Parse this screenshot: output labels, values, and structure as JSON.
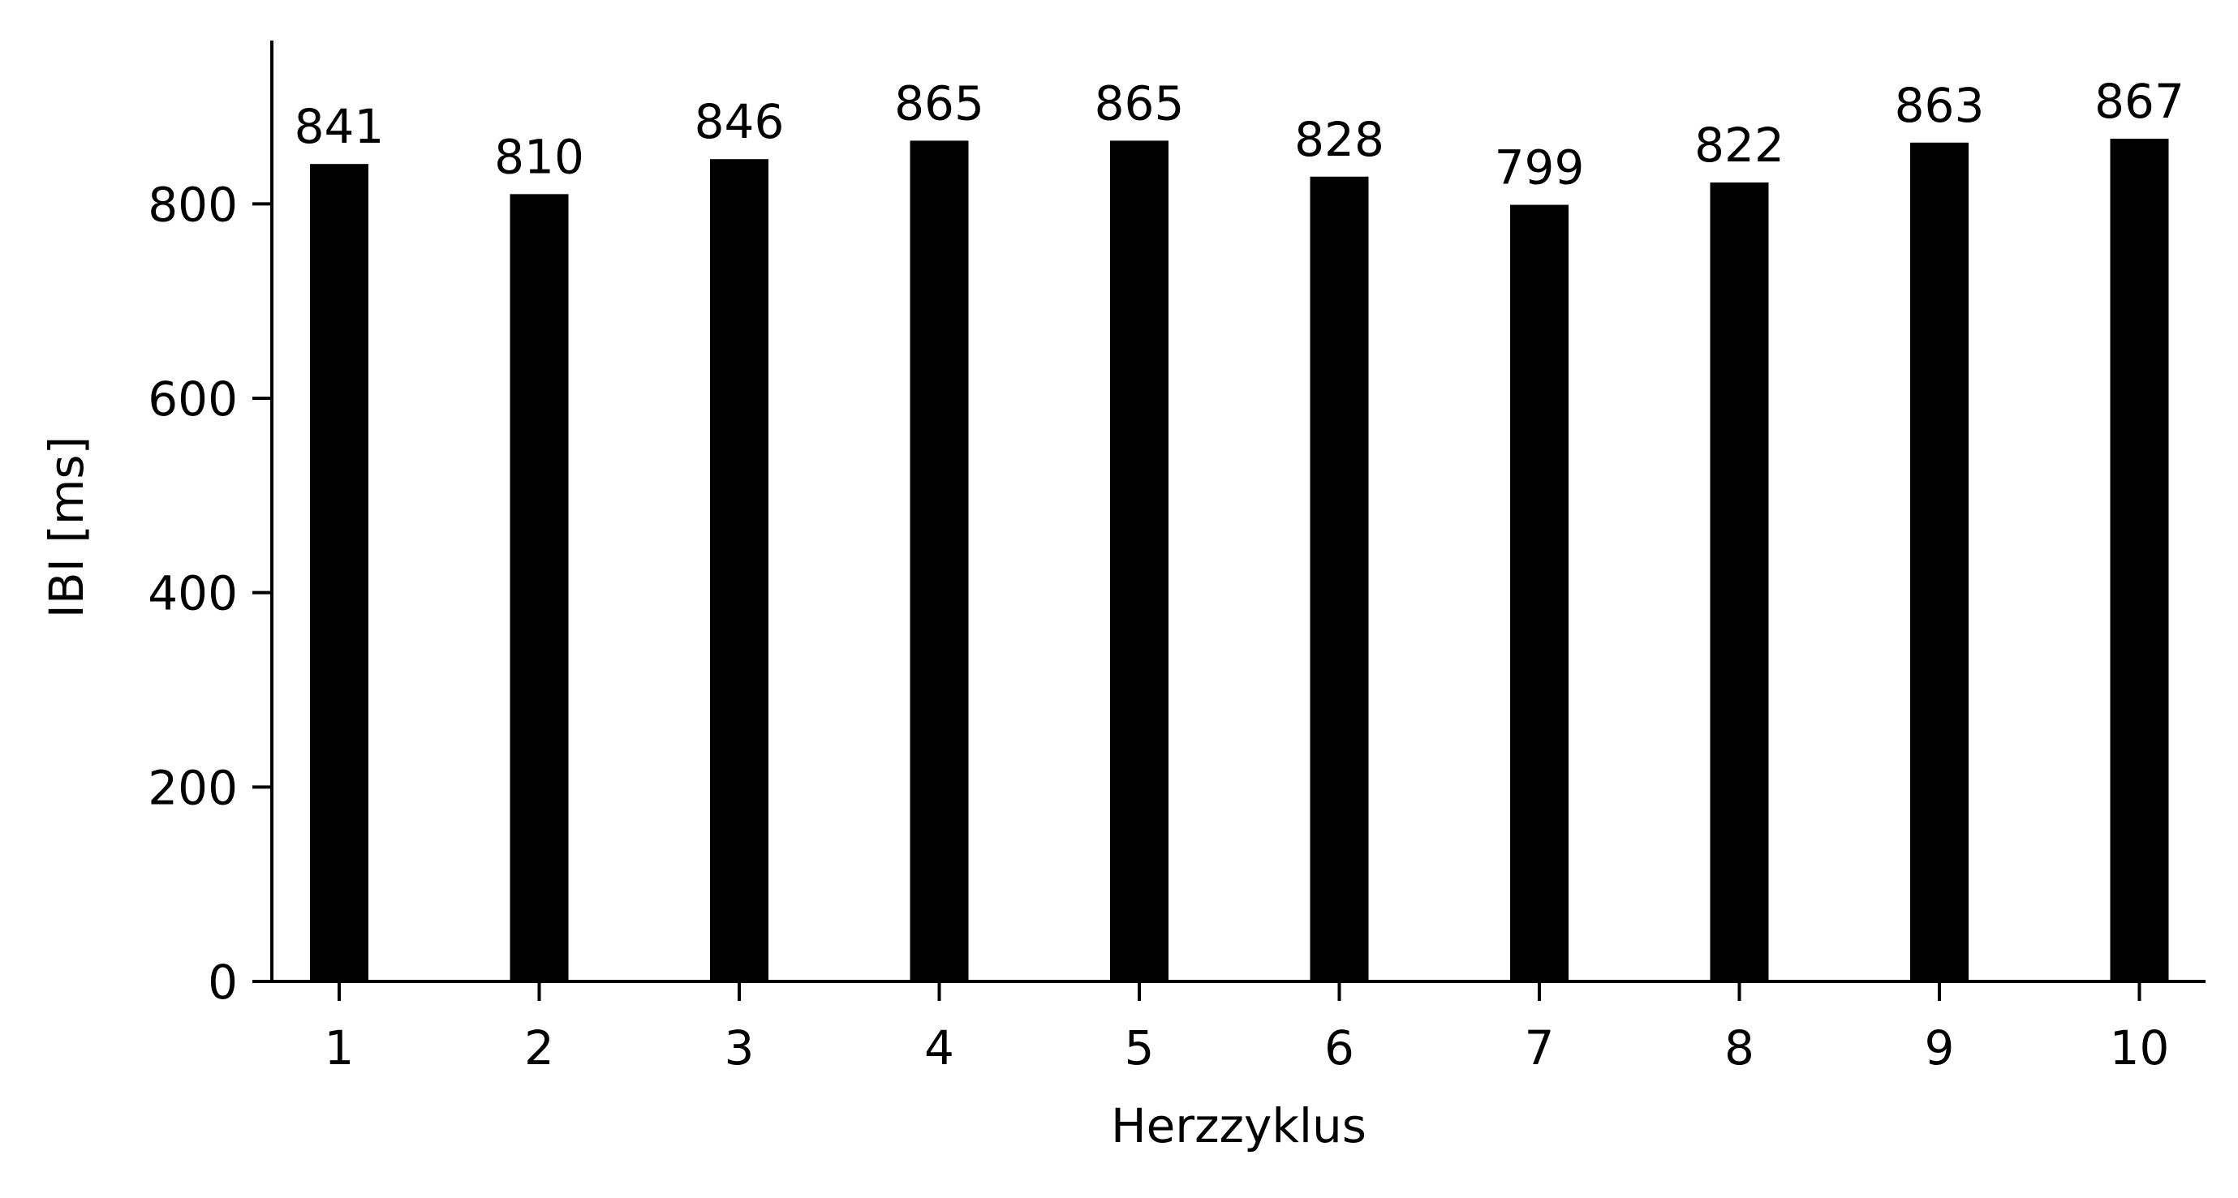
{
  "chart_data": {
    "type": "bar",
    "title": "",
    "xlabel": "Herzzyklus",
    "ylabel": "IBI [ms]",
    "categories": [
      "1",
      "2",
      "3",
      "4",
      "5",
      "6",
      "7",
      "8",
      "9",
      "10"
    ],
    "values": [
      841,
      810,
      846,
      865,
      865,
      828,
      799,
      822,
      863,
      867
    ],
    "data_labels": [
      "841",
      "810",
      "846",
      "865",
      "865",
      "828",
      "799",
      "822",
      "863",
      "867"
    ],
    "yticks": [
      0,
      200,
      400,
      600,
      800
    ],
    "ylim": [
      0,
      968
    ],
    "grid": false,
    "legend": "none",
    "bar_color": "#000000",
    "axis_color": "#000000"
  }
}
